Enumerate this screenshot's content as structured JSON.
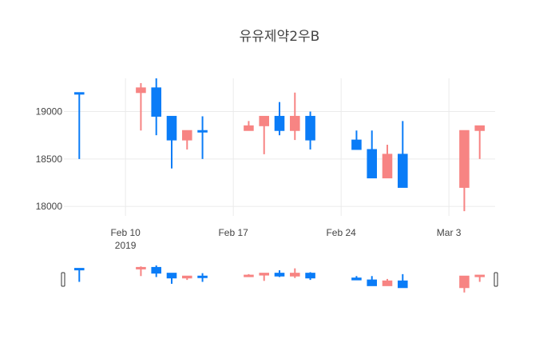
{
  "chart_data": {
    "type": "candlestick",
    "title": "유유제약2우B",
    "ylim": [
      17900,
      19350
    ],
    "xlim": [
      "2019-02-06",
      "2019-03-06"
    ],
    "y_ticks": [
      18000,
      18500,
      19000
    ],
    "y_tick_labels": [
      "18000",
      "18500",
      "19000"
    ],
    "x_ticks": [
      "2019-02-10",
      "2019-02-17",
      "2019-02-24",
      "2019-03-03"
    ],
    "x_tick_labels": [
      "Feb 10",
      "Feb 17",
      "Feb 24",
      "Mar 3"
    ],
    "x_tick_sublabel": "2019",
    "grid": true,
    "rangeslider": true,
    "increasing_color": "#3D9970",
    "decreasing_color": "#FF4136",
    "candles": [
      {
        "date": "2019-02-07",
        "open": 19200,
        "high": 19200,
        "low": 18500,
        "close": 19200
      },
      {
        "date": "2019-02-11",
        "open": 19250,
        "high": 19300,
        "low": 18800,
        "close": 19200
      },
      {
        "date": "2019-02-12",
        "open": 18950,
        "high": 19350,
        "low": 18750,
        "close": 19250
      },
      {
        "date": "2019-02-13",
        "open": 18700,
        "high": 18950,
        "low": 18400,
        "close": 18950
      },
      {
        "date": "2019-02-14",
        "open": 18800,
        "high": 18800,
        "low": 18600,
        "close": 18700
      },
      {
        "date": "2019-02-15",
        "open": 18800,
        "high": 18950,
        "low": 18500,
        "close": 18800
      },
      {
        "date": "2019-02-18",
        "open": 18850,
        "high": 18900,
        "low": 18800,
        "close": 18800
      },
      {
        "date": "2019-02-19",
        "open": 18950,
        "high": 18950,
        "low": 18550,
        "close": 18850
      },
      {
        "date": "2019-02-20",
        "open": 18800,
        "high": 19100,
        "low": 18750,
        "close": 18950
      },
      {
        "date": "2019-02-21",
        "open": 18950,
        "high": 19200,
        "low": 18700,
        "close": 18800
      },
      {
        "date": "2019-02-22",
        "open": 18700,
        "high": 19000,
        "low": 18600,
        "close": 18950
      },
      {
        "date": "2019-02-25",
        "open": 18600,
        "high": 18800,
        "low": 18600,
        "close": 18700
      },
      {
        "date": "2019-02-26",
        "open": 18300,
        "high": 18800,
        "low": 18300,
        "close": 18600
      },
      {
        "date": "2019-02-27",
        "open": 18550,
        "high": 18650,
        "low": 18300,
        "close": 18300
      },
      {
        "date": "2019-02-28",
        "open": 18200,
        "high": 18900,
        "low": 18200,
        "close": 18550
      },
      {
        "date": "2019-03-04",
        "open": 18800,
        "high": 18800,
        "low": 17950,
        "close": 18200
      },
      {
        "date": "2019-03-05",
        "open": 18850,
        "high": 18850,
        "low": 18500,
        "close": 18800
      }
    ]
  }
}
